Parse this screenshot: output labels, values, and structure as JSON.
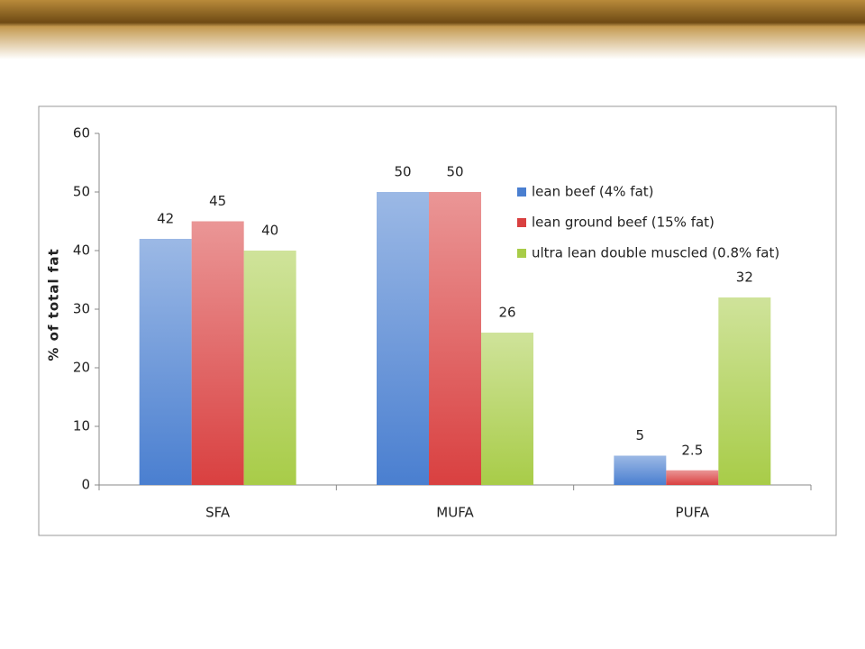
{
  "chart_data": {
    "type": "bar",
    "y_label": "% of total fat",
    "categories": [
      "SFA",
      "MUFA",
      "PUFA"
    ],
    "series": [
      {
        "name": "lean beef (4% fat)",
        "color": "#4a7fd0",
        "values": [
          42,
          50,
          5
        ]
      },
      {
        "name": "lean ground beef (15% fat)",
        "color": "#d94040",
        "values": [
          45,
          50,
          2.5
        ]
      },
      {
        "name": "ultra lean double muscled (0.8% fat)",
        "color": "#a8cc48",
        "values": [
          40,
          26,
          32
        ]
      }
    ],
    "ylim": [
      0,
      60
    ],
    "yticks": [
      0,
      10,
      20,
      30,
      40,
      50,
      60
    ],
    "legend": "upper right"
  }
}
